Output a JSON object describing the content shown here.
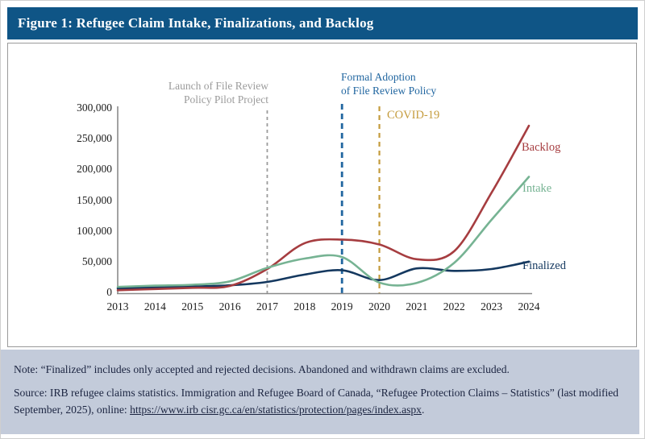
{
  "figure": {
    "title": "Figure 1: Refugee Claim Intake, Finalizations, and Backlog"
  },
  "colors": {
    "title_bar": "#0f5586",
    "panel_border": "#9a9a9a",
    "axis": "#8a8a8a",
    "footer_bg": "#c3cbda",
    "intake": "#76b393",
    "backlog": "#a63d40",
    "finalized": "#14385f",
    "launch_gray": "#9b9b9b",
    "formal_blue": "#2166a0",
    "covid_gold": "#c49b3c"
  },
  "chart_data": {
    "type": "line",
    "x": [
      2013,
      2014,
      2015,
      2016,
      2017,
      2018,
      2019,
      2020,
      2021,
      2022,
      2023,
      2024
    ],
    "xlabel": "",
    "ylabel": "",
    "ylim": [
      0,
      300000
    ],
    "grid": false,
    "legend_position": "end-of-line labels",
    "y_tick_labels": [
      "0",
      "50,000",
      "100,000",
      "150,000",
      "200,000",
      "250,000",
      "300,000"
    ],
    "y_tick_values": [
      0,
      50000,
      100000,
      150000,
      200000,
      250000,
      300000
    ],
    "series": [
      {
        "name": "Finalized",
        "color": "#14385f",
        "values": [
          6500,
          8000,
          9500,
          11500,
          17000,
          29000,
          36000,
          20000,
          39000,
          35000,
          38000,
          50000
        ]
      },
      {
        "name": "Backlog",
        "color": "#a63d40",
        "values": [
          3500,
          5500,
          7500,
          10500,
          38000,
          80000,
          86000,
          78000,
          54000,
          67000,
          162000,
          271000
        ]
      },
      {
        "name": "Intake",
        "color": "#76b393",
        "values": [
          9000,
          11000,
          12500,
          18000,
          40000,
          55000,
          57500,
          16000,
          15500,
          48000,
          118000,
          188000
        ]
      }
    ],
    "series_labels": {
      "backlog": "Backlog",
      "intake": "Intake",
      "finalized": "Finalized"
    },
    "annotations": [
      {
        "id": "launch",
        "line1": "Launch of File Review",
        "line2": "Policy Pilot Project",
        "color": "#9b9b9b",
        "vline_year": 2017,
        "vline_style": "dashed"
      },
      {
        "id": "formal",
        "line1": "Formal Adoption",
        "line2": "of File Review Policy",
        "color": "#2166a0",
        "vline_year": 2019,
        "vline_style": "dashed"
      },
      {
        "id": "covid",
        "line1": "COVID-19",
        "line2": "",
        "color": "#c49b3c",
        "vline_year": 2020,
        "vline_style": "dashed"
      }
    ]
  },
  "footer": {
    "note": "Note: “Finalized” includes only accepted and rejected decisions. Abandoned and withdrawn claims are excluded.",
    "source_before": "Source: IRB refugee claims statistics. Immigration and Refugee Board of Canada, “Refugee Protection Claims – Statistics” (last modified September, 2025), online: ",
    "source_link": "https://www.irb cisr.gc.ca/en/statistics/protection/pages/index.aspx",
    "source_after": "."
  }
}
